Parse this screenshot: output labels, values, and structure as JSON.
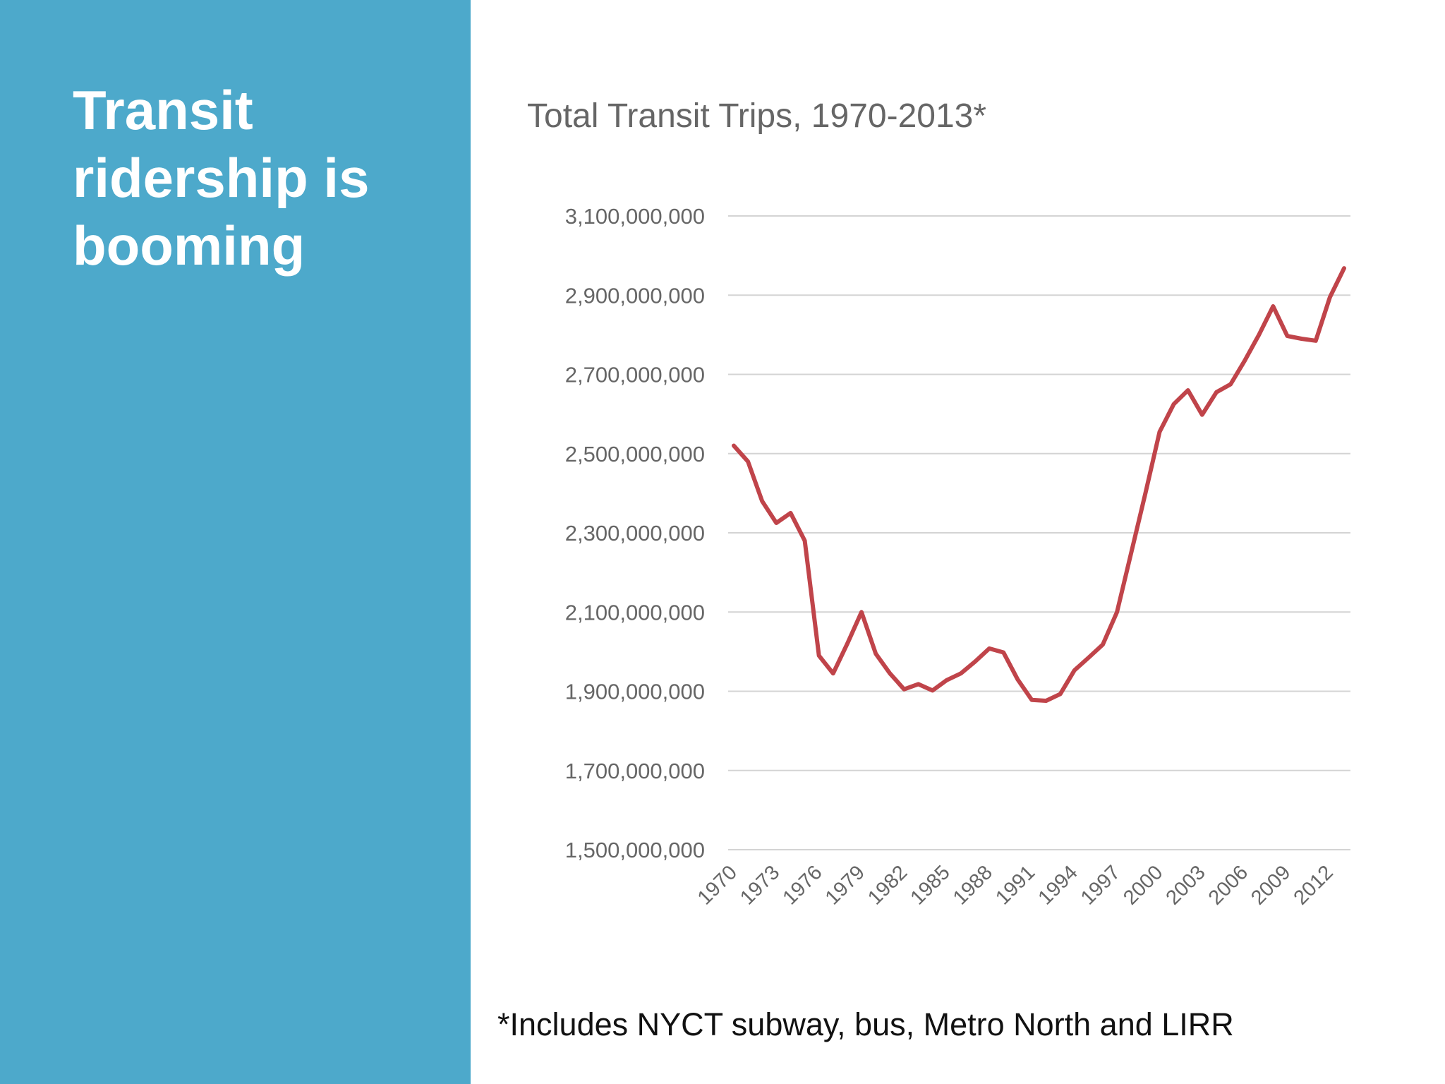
{
  "slide": {
    "title": "Transit ridership is booming",
    "panel_color": "#4DA9CB"
  },
  "footnote": "*Includes NYCT subway, bus, Metro North and LIRR",
  "chart_data": {
    "type": "line",
    "title": "Total Transit Trips, 1970-2013*",
    "xlabel": "",
    "ylabel": "",
    "ylim": [
      1500000000,
      3100000000
    ],
    "yticks": [
      1500000000,
      1700000000,
      1900000000,
      2100000000,
      2300000000,
      2500000000,
      2700000000,
      2900000000,
      3100000000
    ],
    "ytick_labels": [
      "1,500,000,000",
      "1,700,000,000",
      "1,900,000,000",
      "2,100,000,000",
      "2,300,000,000",
      "2,500,000,000",
      "2,700,000,000",
      "2,900,000,000",
      "3,100,000,000"
    ],
    "xtick_labels": [
      "1970",
      "1973",
      "1976",
      "1979",
      "1982",
      "1985",
      "1988",
      "1991",
      "1994",
      "1997",
      "2000",
      "2003",
      "2006",
      "2009",
      "2012"
    ],
    "grid": true,
    "legend": "none",
    "line_color": "#C0444A",
    "x": [
      1970,
      1971,
      1972,
      1973,
      1974,
      1975,
      1976,
      1977,
      1978,
      1979,
      1980,
      1981,
      1982,
      1983,
      1984,
      1985,
      1986,
      1987,
      1988,
      1989,
      1990,
      1991,
      1992,
      1993,
      1994,
      1995,
      1996,
      1997,
      1998,
      1999,
      2000,
      2001,
      2002,
      2003,
      2004,
      2005,
      2006,
      2007,
      2008,
      2009,
      2010,
      2011,
      2012,
      2013
    ],
    "y": [
      2520000000,
      2480000000,
      2380000000,
      2325000000,
      2350000000,
      2280000000,
      1990000000,
      1945000000,
      2020000000,
      2100000000,
      1995000000,
      1945000000,
      1905000000,
      1918000000,
      1902000000,
      1928000000,
      1945000000,
      1975000000,
      2008000000,
      1998000000,
      1930000000,
      1878000000,
      1876000000,
      1893000000,
      1953000000,
      1985000000,
      2018000000,
      2100000000,
      2250000000,
      2400000000,
      2555000000,
      2625000000,
      2660000000,
      2598000000,
      2655000000,
      2675000000,
      2735000000,
      2800000000,
      2872000000,
      2797000000,
      2790000000,
      2785000000,
      2895000000,
      2968000000
    ]
  }
}
